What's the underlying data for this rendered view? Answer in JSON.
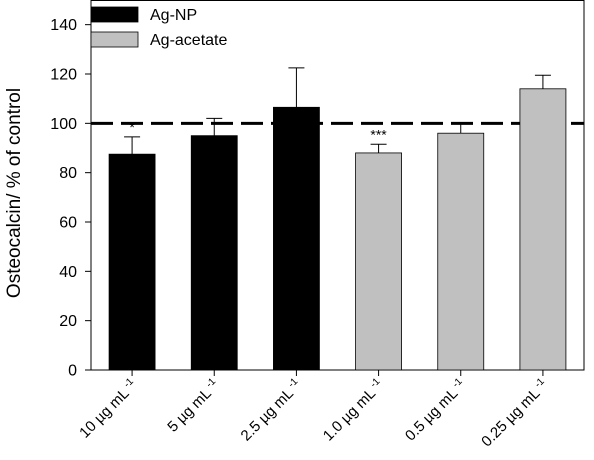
{
  "chart_data": {
    "type": "bar",
    "title": "",
    "xlabel": "",
    "ylabel": "Osteocalcin/ % of control",
    "ylim": [
      0,
      150
    ],
    "yticks": [
      0,
      20,
      40,
      60,
      80,
      100,
      120,
      140
    ],
    "reference_line": 100,
    "categories": [
      {
        "main": "10 µg mL",
        "sup": "-1"
      },
      {
        "main": "5 µg mL",
        "sup": "-1"
      },
      {
        "main": "2.5 µg mL",
        "sup": "-1"
      },
      {
        "main": "1.0 µg mL",
        "sup": "-1"
      },
      {
        "main": "0.5 µg mL",
        "sup": "-1"
      },
      {
        "main": "0.25 µg mL",
        "sup": "-1"
      }
    ],
    "values": [
      87.5,
      95,
      106.5,
      88,
      96,
      114
    ],
    "errors": [
      7,
      7,
      16,
      3.5,
      4,
      5.5
    ],
    "group": [
      0,
      0,
      0,
      1,
      1,
      1
    ],
    "significance": [
      "*",
      "",
      "",
      "***",
      "",
      ""
    ],
    "series": [
      {
        "name": "Ag-NP",
        "color": "#000000"
      },
      {
        "name": "Ag-acetate",
        "color": "#c0c0c0"
      }
    ],
    "legend": "top-left",
    "grid": false
  }
}
